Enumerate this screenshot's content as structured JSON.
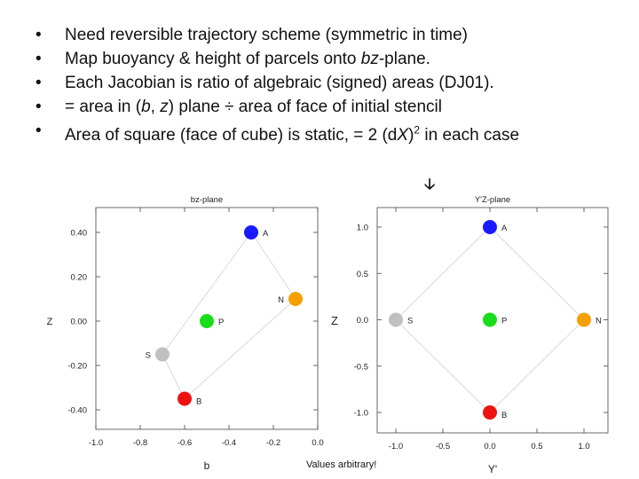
{
  "bullets": [
    "Need reversible trajectory scheme (symmetric in time)",
    "Map buoyancy & height of parcels onto bz-plane.",
    "Each Jacobian is ratio of algebraic (signed) areas (DJ01).",
    "= area in (b, z) plane ÷ area of face of initial stencil",
    "Area of square (face of cube) is static, = 2 (dX)2 in each case"
  ],
  "bullet_glyph": "•",
  "arrow_glyph": "🡣",
  "footnote": "Values arbitrary!",
  "chart_data": [
    {
      "type": "scatter",
      "title": "bz-plane",
      "xlabel": "b",
      "ylabel": "Z",
      "xlim": [
        -1.0,
        0.0
      ],
      "ylim": [
        -0.5,
        0.5
      ],
      "xticks": [
        "-1.0",
        "-0.8",
        "-0.6",
        "-0.4",
        "-0.2",
        "0.0"
      ],
      "yticks": [
        "0.40",
        "0.20",
        "0.00",
        "-0.20",
        "-0.40"
      ],
      "grid": false,
      "points": [
        {
          "label": "A",
          "x": -0.3,
          "y": 0.4,
          "color": "#1a1aff"
        },
        {
          "label": "N",
          "x": -0.1,
          "y": 0.1,
          "color": "#f5a000"
        },
        {
          "label": "P",
          "x": -0.5,
          "y": 0.0,
          "color": "#1adc1a"
        },
        {
          "label": "S",
          "x": -0.7,
          "y": -0.15,
          "color": "#c0c0c0"
        },
        {
          "label": "B",
          "x": -0.6,
          "y": -0.35,
          "color": "#ee1111"
        }
      ],
      "polygon": [
        "A",
        "N",
        "B",
        "S"
      ]
    },
    {
      "type": "scatter",
      "title": "Y'Z-plane",
      "xlabel": "Y'",
      "ylabel": "Z",
      "xlim": [
        -1.0,
        1.0
      ],
      "ylim": [
        -1.0,
        1.0
      ],
      "xticks": [
        "-1.0",
        "-0.5",
        "0.0",
        "0.5",
        "1.0"
      ],
      "yticks": [
        "1.0",
        "0.5",
        "0.0",
        "-0.5",
        "-1.0"
      ],
      "grid": false,
      "points": [
        {
          "label": "A",
          "x": 0.0,
          "y": 1.0,
          "color": "#1a1aff"
        },
        {
          "label": "N",
          "x": 1.0,
          "y": 0.0,
          "color": "#f5a000"
        },
        {
          "label": "P",
          "x": 0.0,
          "y": 0.0,
          "color": "#1adc1a"
        },
        {
          "label": "S",
          "x": -1.0,
          "y": 0.0,
          "color": "#c0c0c0"
        },
        {
          "label": "B",
          "x": 0.0,
          "y": -1.0,
          "color": "#ee1111"
        }
      ],
      "polygon": [
        "A",
        "N",
        "B",
        "S"
      ]
    }
  ]
}
